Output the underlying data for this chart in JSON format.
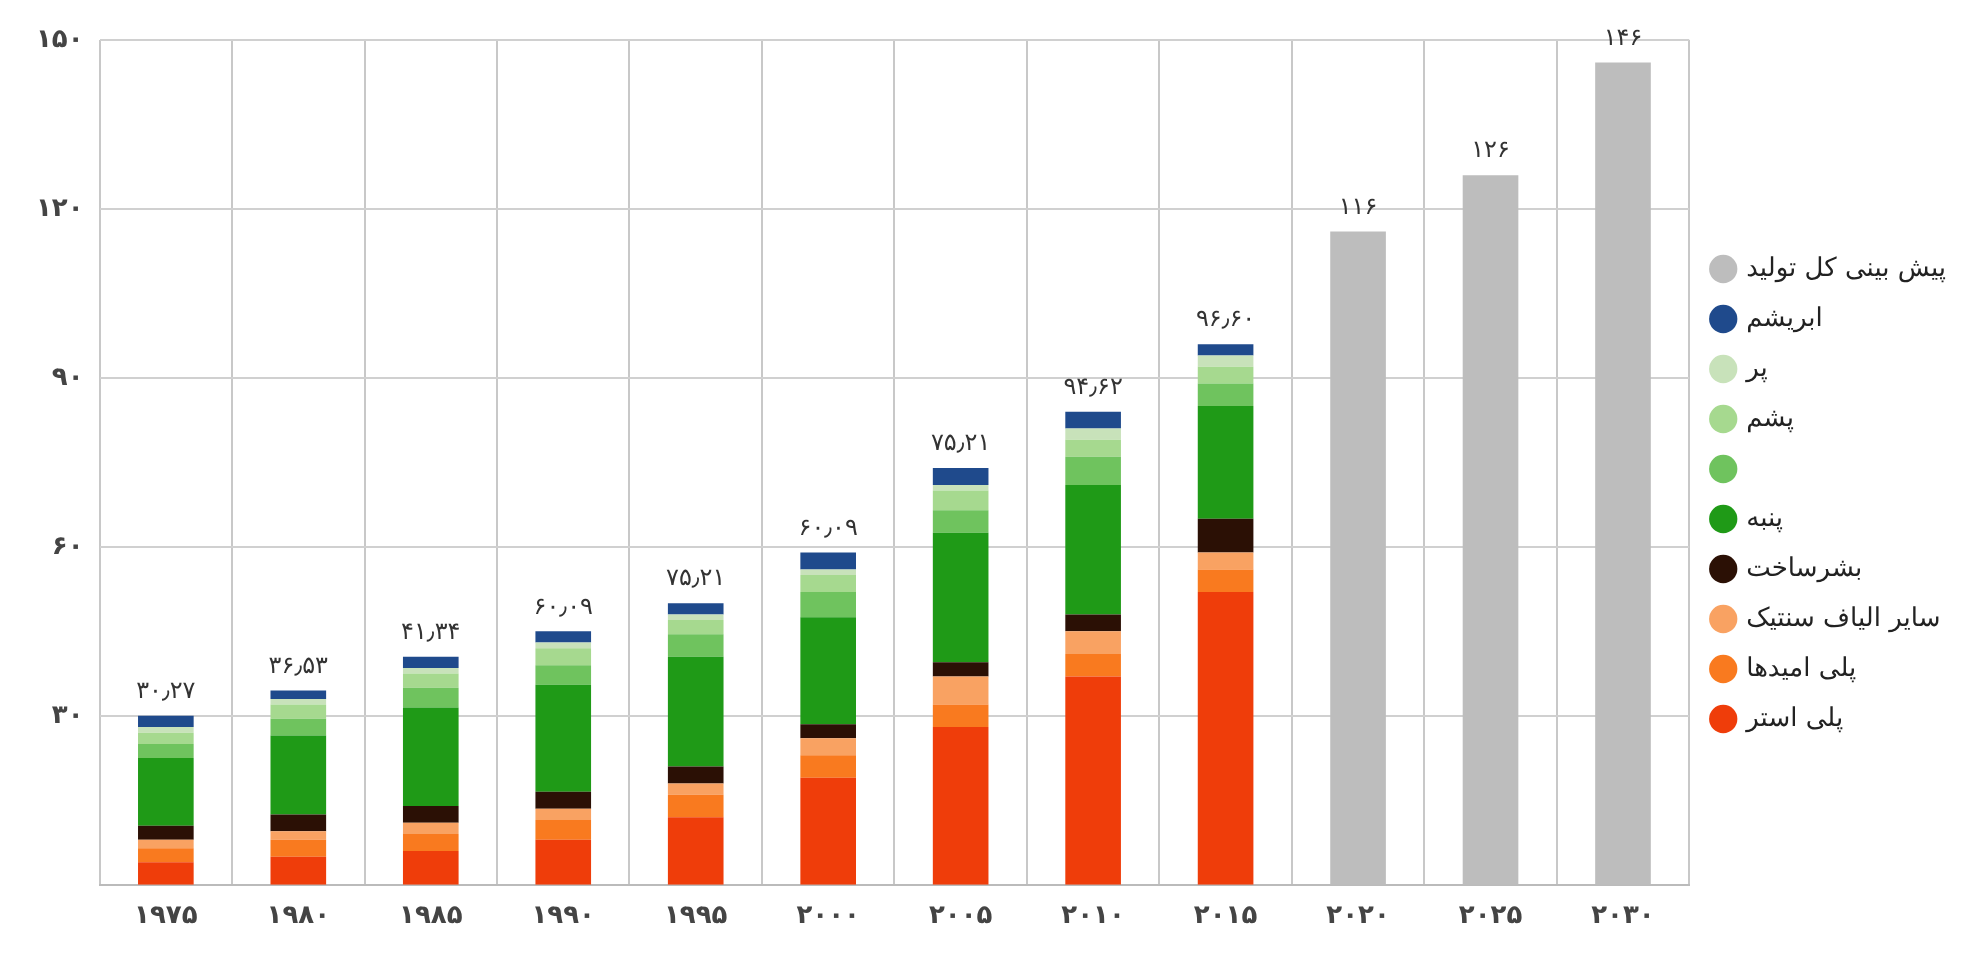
{
  "chart_data": {
    "type": "bar",
    "stacked": true,
    "categories": [
      "۱۹۷۵",
      "۱۹۸۰",
      "۱۹۸۵",
      "۱۹۹۰",
      "۱۹۹۵",
      "۲۰۰۰",
      "۲۰۰۵",
      "۲۰۱۰",
      "۲۰۱۵",
      "۲۰۲۰",
      "۲۰۲۵",
      "۲۰۳۰"
    ],
    "series": [
      {
        "name": "پلی استر",
        "color": "#ef3d0a",
        "values": [
          4,
          5,
          6,
          8,
          12,
          19,
          28,
          37,
          52,
          null,
          null,
          null
        ]
      },
      {
        "name": "پلی امیدها",
        "color": "#f97a1f",
        "values": [
          2.5,
          3,
          3,
          3.5,
          4,
          4,
          4,
          4,
          4,
          null,
          null,
          null
        ]
      },
      {
        "name": "سایر الیاف سنتیک",
        "color": "#f9a262",
        "values": [
          1.5,
          1.5,
          2,
          2,
          2,
          3,
          5,
          4,
          3,
          null,
          null,
          null
        ]
      },
      {
        "name": "بشرساخت",
        "color": "#2b1005",
        "values": [
          2.5,
          3,
          3,
          3,
          3,
          2.5,
          2.5,
          3,
          6,
          null,
          null,
          null
        ]
      },
      {
        "name": "پنبه",
        "color": "#1f9a17",
        "values": [
          12,
          14,
          17.5,
          19,
          19.5,
          19,
          23,
          23,
          20,
          null,
          null,
          null
        ]
      },
      {
        "color": "#6fc35e",
        "values": [
          2.5,
          3,
          3.5,
          3.5,
          4,
          4.5,
          4,
          5,
          4,
          null,
          null,
          null
        ]
      },
      {
        "name": "پشم",
        "color": "#a6d98f",
        "values": [
          2,
          2.5,
          2.5,
          3,
          2.5,
          3,
          3.5,
          3,
          3,
          null,
          null,
          null
        ]
      },
      {
        "name": "پر",
        "color": "#c8e2ba",
        "values": [
          1,
          1,
          1,
          1,
          1,
          1,
          1,
          2,
          2,
          null,
          null,
          null
        ]
      },
      {
        "name": "ابریشم",
        "color": "#1f4a8c",
        "values": [
          2,
          1.5,
          2,
          2,
          2,
          3,
          3,
          3,
          2,
          null,
          null,
          null
        ]
      },
      {
        "name": "پیش بینی کل تولید",
        "color": "#bdbdbd",
        "values": [
          null,
          null,
          null,
          null,
          null,
          null,
          null,
          null,
          null,
          116,
          126,
          146
        ]
      }
    ],
    "totals": [
      "۳۰٫۲۷",
      "۳۶٫۵۳",
      "۴۱٫۳۴",
      "۶۰٫۰۹",
      "۷۵٫۲۱",
      "۶۰٫۰۹",
      "۷۵٫۲۱",
      "۹۴٫۶۲",
      "۹۶٫۶۰",
      "۱۱۶",
      "۱۲۶",
      "۱۴۶"
    ],
    "ylim": [
      0,
      150
    ],
    "yticks": [
      {
        "value": 30,
        "label": "۳۰"
      },
      {
        "value": 60,
        "label": "۶۰"
      },
      {
        "value": 90,
        "label": "۹۰"
      },
      {
        "value": 120,
        "label": "۱۲۰"
      },
      {
        "value": 150,
        "label": "۱۵۰"
      }
    ],
    "grid": true,
    "legend": "right"
  }
}
